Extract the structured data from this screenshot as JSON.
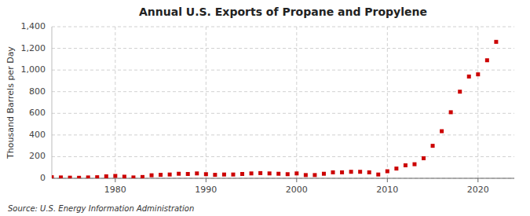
{
  "chart_data": {
    "type": "scatter",
    "title": "Annual U.S. Exports of Propane and Propylene",
    "ylabel": "Thousand Barrels per Day",
    "annotations": [
      "Source: U.S. Energy Information Administration"
    ],
    "x": [
      1973,
      1974,
      1975,
      1976,
      1977,
      1978,
      1979,
      1980,
      1981,
      1982,
      1983,
      1984,
      1985,
      1986,
      1987,
      1988,
      1989,
      1990,
      1991,
      1992,
      1993,
      1994,
      1995,
      1996,
      1997,
      1998,
      1999,
      2000,
      2001,
      2002,
      2003,
      2004,
      2005,
      2006,
      2007,
      2008,
      2009,
      2010,
      2011,
      2012,
      2013,
      2014,
      2015,
      2016,
      2017,
      2018,
      2019,
      2020,
      2021,
      2022
    ],
    "values": [
      10,
      8,
      6,
      5,
      8,
      10,
      18,
      22,
      15,
      8,
      12,
      28,
      32,
      35,
      42,
      40,
      45,
      38,
      32,
      35,
      35,
      40,
      45,
      48,
      45,
      42,
      38,
      45,
      30,
      30,
      42,
      55,
      55,
      60,
      60,
      55,
      35,
      65,
      90,
      120,
      130,
      185,
      300,
      435,
      610,
      800,
      940,
      960,
      1090,
      1260
    ],
    "color": "#cc0000",
    "marker": "square",
    "xlim": [
      1973,
      2024
    ],
    "ylim": [
      0,
      1400
    ],
    "xticks": [
      1980,
      1990,
      2000,
      2010,
      2020
    ],
    "yticks": [
      0,
      200,
      400,
      600,
      800,
      {
        "value": 1000,
        "label": "1,000"
      },
      {
        "value": 1200,
        "label": "1,200"
      },
      {
        "value": 1400,
        "label": "1,400"
      }
    ],
    "grid": true
  }
}
